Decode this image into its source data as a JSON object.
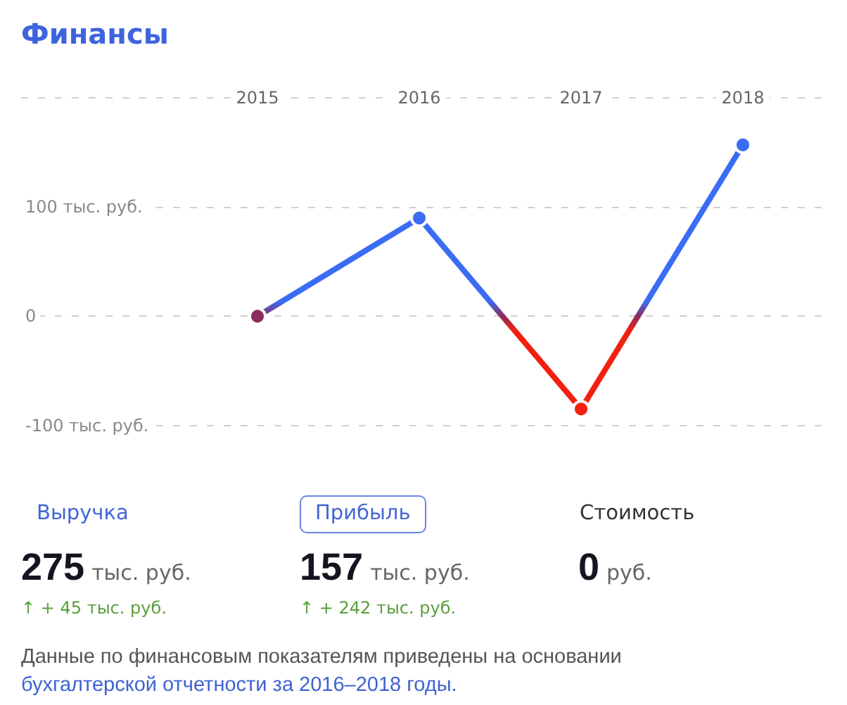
{
  "chart_data": [
    {
      "type": "line",
      "title": "Финансы",
      "categories": [
        "2015",
        "2016",
        "2017",
        "2018"
      ],
      "series": [
        {
          "colors": [
            "#8c2b5e",
            "#3b6cf4",
            "#f2200f",
            "#3b6cf4"
          ],
          "values": [
            0,
            90,
            -85,
            157
          ]
        }
      ],
      "ylim": [
        -100,
        200
      ],
      "yticks": [
        {
          "value": -100,
          "label": "-100 тыс. руб."
        },
        {
          "value": 0,
          "label": "0"
        },
        {
          "value": 100,
          "label": "100 тыс. руб."
        },
        {
          "value": 200,
          "label": null
        }
      ],
      "grid": "y",
      "marker": "circle",
      "line_style": "solid",
      "annotations": [
        "Данные по финансовым показателям приведены на основании",
        "бухгалтерской отчетности за 2016–2018 годы."
      ]
    },
    {
      "type": "other",
      "categories": [
        "Выручка",
        "Прибыль",
        "Стоимость"
      ],
      "value_labels": [
        "275 тыс. руб.",
        "157 тыс. руб.",
        "0 руб."
      ],
      "annotations": [
        "↑ + 45 тыс. руб.",
        "↑ + 242 тыс. руб."
      ]
    }
  ]
}
